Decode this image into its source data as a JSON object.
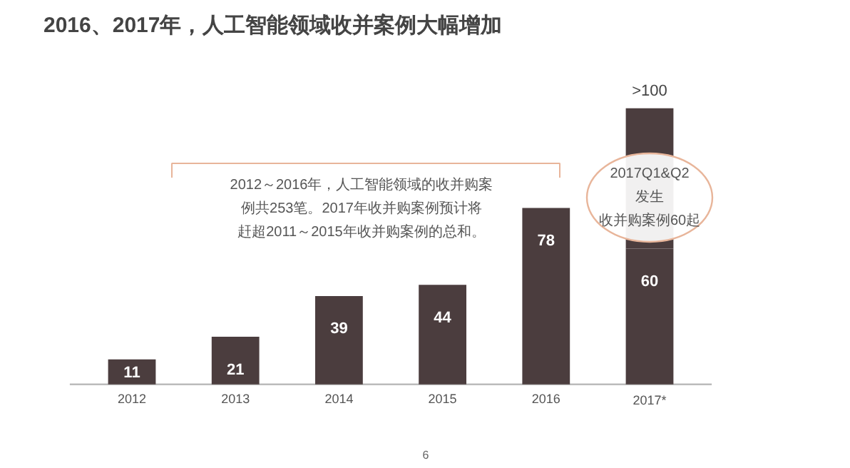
{
  "chart_data": {
    "type": "bar",
    "title": "2016、2017年，人工智能领域收并案例大幅增加",
    "categories": [
      "2012",
      "2013",
      "2014",
      "2015",
      "2016",
      "2017*"
    ],
    "stacked": true,
    "series": [
      {
        "color": "#4b3d3e",
        "values": [
          11,
          21,
          39,
          44,
          78,
          60
        ],
        "value_labels": [
          "11",
          "21",
          "39",
          "44",
          "78",
          "60"
        ]
      },
      {
        "color": "#4b3d3e",
        "values": [
          null,
          null,
          null,
          null,
          null,
          62
        ],
        "value_labels": [
          null,
          null,
          null,
          null,
          null,
          null
        ]
      }
    ],
    "totals": [
      null,
      null,
      null,
      null,
      null,
      ">100"
    ],
    "grid": false,
    "annotations": [
      "2012～2016年，人工智能领域的收并购案例共253笔。2017年收并购案例预计将赶超2011～2015年收并购案例的总和。",
      "2017Q1&Q2发生收并购案例60起",
      "6"
    ]
  }
}
